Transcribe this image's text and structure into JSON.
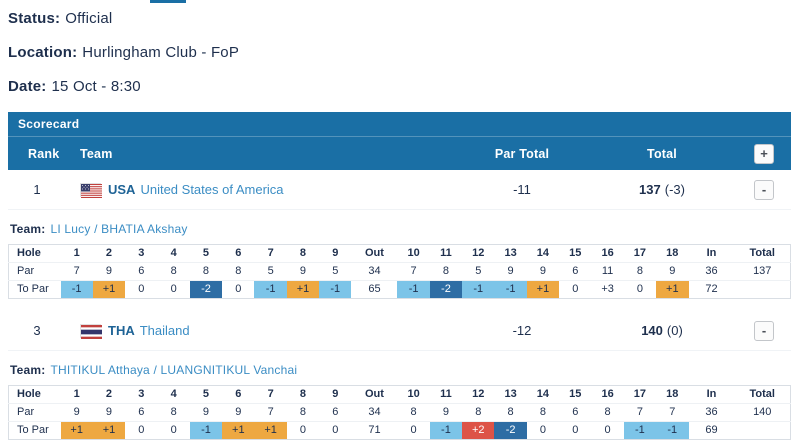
{
  "colors": {
    "header_blue": "#1a6fa5",
    "navy_text": "#1e2f4d",
    "link_blue": "#3b8dc4",
    "team_code_blue": "#1e6396",
    "birdie_bg": "#7cc4e8",
    "eagle_bg": "#2e6da4",
    "bogey_bg": "#eea841",
    "double_bogey_bg": "#dd5347"
  },
  "top": {
    "status_label": "Status:",
    "status_value": "Official",
    "location_label": "Location:",
    "location_value": "Hurlingham Club - FoP",
    "date_label": "Date:",
    "date_value": "15 Oct - 8:30"
  },
  "scorecard": {
    "title": "Scorecard",
    "header": {
      "rank": "Rank",
      "team": "Team",
      "par_total": "Par Total",
      "total": "Total",
      "expand_button": "+"
    },
    "teams": [
      {
        "rank": "1",
        "flag": "usa-flag",
        "code": "USA",
        "country": "United States of America",
        "par_total": "-11",
        "total": "137",
        "total_suffix": "(-3)",
        "collapse_button": "-",
        "team_label": "Team:",
        "players": "LI Lucy / BHATIA Akshay",
        "detail": {
          "row_labels": [
            "Hole",
            "Par",
            "To Par"
          ],
          "holes": [
            "1",
            "2",
            "3",
            "4",
            "5",
            "6",
            "7",
            "8",
            "9",
            "Out",
            "10",
            "11",
            "12",
            "13",
            "14",
            "15",
            "16",
            "17",
            "18",
            "In",
            "Total"
          ],
          "par": [
            "7",
            "9",
            "6",
            "8",
            "8",
            "8",
            "5",
            "9",
            "5",
            "34",
            "7",
            "8",
            "5",
            "9",
            "9",
            "6",
            "11",
            "8",
            "9",
            "36",
            "137"
          ],
          "to_par": [
            {
              "v": "-1",
              "t": "birdie"
            },
            {
              "v": "+1",
              "t": "bogey"
            },
            {
              "v": "0",
              "t": "none"
            },
            {
              "v": "0",
              "t": "none"
            },
            {
              "v": "-2",
              "t": "eagle"
            },
            {
              "v": "0",
              "t": "none"
            },
            {
              "v": "-1",
              "t": "birdie"
            },
            {
              "v": "+1",
              "t": "bogey"
            },
            {
              "v": "-1",
              "t": "birdie"
            },
            {
              "v": "65",
              "t": "none"
            },
            {
              "v": "-1",
              "t": "birdie"
            },
            {
              "v": "-2",
              "t": "eagle"
            },
            {
              "v": "-1",
              "t": "birdie"
            },
            {
              "v": "-1",
              "t": "birdie"
            },
            {
              "v": "+1",
              "t": "bogey"
            },
            {
              "v": "0",
              "t": "none"
            },
            {
              "v": "+3",
              "t": "none"
            },
            {
              "v": "0",
              "t": "none"
            },
            {
              "v": "+1",
              "t": "bogey"
            },
            {
              "v": "72",
              "t": "none"
            },
            {
              "v": "",
              "t": "none"
            }
          ]
        }
      },
      {
        "rank": "3",
        "flag": "tha-flag",
        "code": "THA",
        "country": "Thailand",
        "par_total": "-12",
        "total": "140",
        "total_suffix": "(0)",
        "collapse_button": "-",
        "team_label": "Team:",
        "players": "THITIKUL Atthaya / LUANGNITIKUL Vanchai",
        "detail": {
          "row_labels": [
            "Hole",
            "Par",
            "To Par"
          ],
          "holes": [
            "1",
            "2",
            "3",
            "4",
            "5",
            "6",
            "7",
            "8",
            "9",
            "Out",
            "10",
            "11",
            "12",
            "13",
            "14",
            "15",
            "16",
            "17",
            "18",
            "In",
            "Total"
          ],
          "par": [
            "9",
            "9",
            "6",
            "8",
            "9",
            "9",
            "7",
            "8",
            "6",
            "34",
            "8",
            "9",
            "8",
            "8",
            "8",
            "6",
            "8",
            "7",
            "7",
            "36",
            "140"
          ],
          "to_par": [
            {
              "v": "+1",
              "t": "bogey"
            },
            {
              "v": "+1",
              "t": "bogey"
            },
            {
              "v": "0",
              "t": "none"
            },
            {
              "v": "0",
              "t": "none"
            },
            {
              "v": "-1",
              "t": "birdie"
            },
            {
              "v": "+1",
              "t": "bogey"
            },
            {
              "v": "+1",
              "t": "bogey"
            },
            {
              "v": "0",
              "t": "none"
            },
            {
              "v": "0",
              "t": "none"
            },
            {
              "v": "71",
              "t": "none"
            },
            {
              "v": "0",
              "t": "none"
            },
            {
              "v": "-1",
              "t": "birdie"
            },
            {
              "v": "+2",
              "t": "double"
            },
            {
              "v": "-2",
              "t": "eagle"
            },
            {
              "v": "0",
              "t": "none"
            },
            {
              "v": "0",
              "t": "none"
            },
            {
              "v": "0",
              "t": "none"
            },
            {
              "v": "-1",
              "t": "birdie"
            },
            {
              "v": "-1",
              "t": "birdie"
            },
            {
              "v": "69",
              "t": "none"
            },
            {
              "v": "",
              "t": "none"
            }
          ]
        }
      }
    ]
  }
}
